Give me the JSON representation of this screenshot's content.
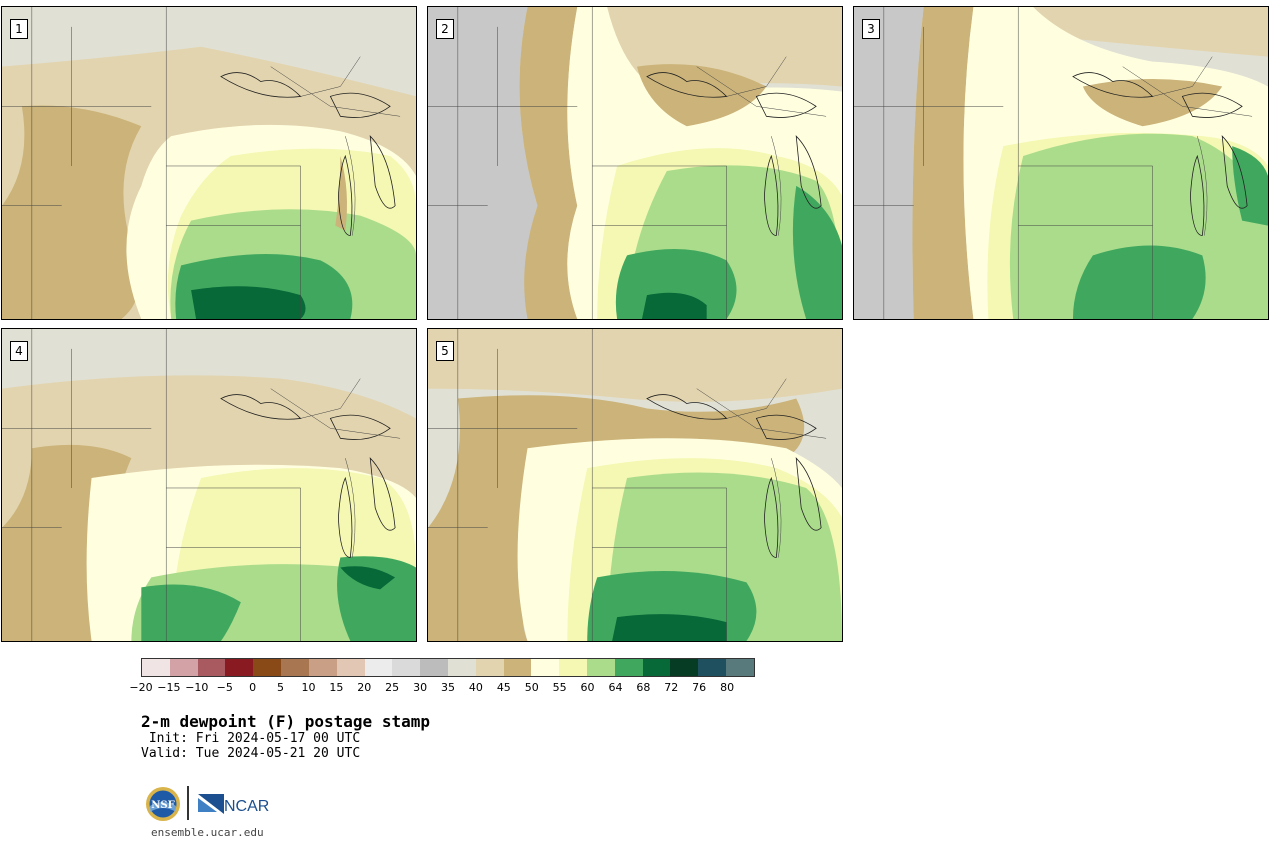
{
  "panels": [
    {
      "label": "1",
      "theme": "dry"
    },
    {
      "label": "2",
      "theme": "moist-west"
    },
    {
      "label": "3",
      "theme": "moist-wide"
    },
    {
      "label": "4",
      "theme": "moist-east"
    },
    {
      "label": "5",
      "theme": "moist-south"
    }
  ],
  "colorbar": {
    "colors": [
      "#f0e4e4",
      "#d2a2a6",
      "#a85a60",
      "#8a1a22",
      "#8a4a18",
      "#a87650",
      "#c9a086",
      "#e2c8b4",
      "#ececec",
      "#dadada",
      "#bcbcbc",
      "#e0e0d4",
      "#e2d4ae",
      "#cbb379",
      "#ffffe0",
      "#f4f8b2",
      "#aadc8c",
      "#40a85e",
      "#076838",
      "#073c24",
      "#1e5060",
      "#587a7c"
    ],
    "tick_labels": [
      "−20",
      "−15",
      "−10",
      "−5",
      "0",
      "5",
      "10",
      "15",
      "20",
      "25",
      "30",
      "35",
      "40",
      "45",
      "50",
      "55",
      "60",
      "64",
      "68",
      "72",
      "76",
      "80"
    ]
  },
  "title": "2-m dewpoint (F) postage stamp",
  "init": " Init: Fri 2024-05-17 00 UTC",
  "valid": "Valid: Tue 2024-05-21 20 UTC",
  "logos": {
    "nsf": "nsf-logo",
    "ncar": "NCAR"
  },
  "website": "ensemble.ucar.edu"
}
